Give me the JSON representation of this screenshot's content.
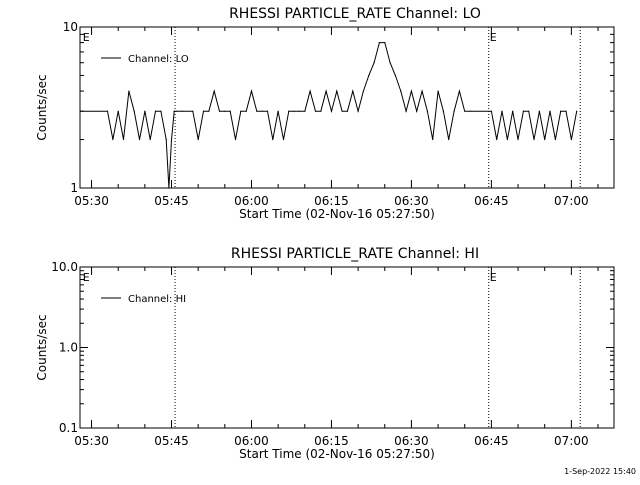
{
  "footer": {
    "timestamp": "1-Sep-2022 15:40"
  },
  "chart_data": [
    {
      "type": "line",
      "title": "RHESSI PARTICLE_RATE Channel: LO",
      "xlabel": "Start Time (02-Nov-16 05:27:50)",
      "ylabel": "Counts/sec",
      "yscale": "log",
      "ylim": [
        1,
        10
      ],
      "yticks": [
        1,
        10
      ],
      "ytick_labels": [
        "1",
        "10"
      ],
      "xlim": [
        "05:27:50",
        "07:08:00"
      ],
      "xticks": [
        "05:30",
        "05:45",
        "06:00",
        "06:15",
        "06:30",
        "06:45",
        "07:00"
      ],
      "legend": {
        "position": "top-left",
        "entries": [
          "Channel: LO"
        ]
      },
      "event_markers": [
        {
          "time": "05:28:10",
          "label": "E",
          "line": false
        },
        {
          "time": "05:45:40",
          "label": "",
          "line": true
        },
        {
          "time": "06:44:30",
          "label": "E",
          "line": true
        },
        {
          "time": "07:01:40",
          "label": "",
          "line": true
        }
      ],
      "series": [
        {
          "name": "Channel: LO",
          "x": [
            "05:28",
            "05:33",
            "05:34",
            "05:35",
            "05:36",
            "05:37",
            "05:38",
            "05:39",
            "05:40",
            "05:41",
            "05:42",
            "05:43",
            "05:44",
            "05:44:30",
            "05:45",
            "05:45:30",
            "05:46",
            "05:47",
            "05:49",
            "05:50",
            "05:51",
            "05:52",
            "05:53",
            "05:54",
            "05:55",
            "05:56",
            "05:57",
            "05:58",
            "05:59",
            "06:00",
            "06:01",
            "06:02",
            "06:03",
            "06:04",
            "06:05",
            "06:06",
            "06:07",
            "06:08",
            "06:09",
            "06:10",
            "06:11",
            "06:12",
            "06:13",
            "06:14",
            "06:15",
            "06:16",
            "06:17",
            "06:18",
            "06:19",
            "06:20",
            "06:21",
            "06:22",
            "06:23",
            "06:24",
            "06:25",
            "06:26",
            "06:27",
            "06:28",
            "06:29",
            "06:30",
            "06:31",
            "06:32",
            "06:33",
            "06:34",
            "06:35",
            "06:36",
            "06:37",
            "06:38",
            "06:39",
            "06:40",
            "06:41",
            "06:45",
            "06:46",
            "06:47",
            "06:48",
            "06:49",
            "06:50",
            "06:51",
            "06:52",
            "06:53",
            "06:54",
            "06:55",
            "06:56",
            "06:57",
            "06:58",
            "06:59",
            "07:00",
            "07:01"
          ],
          "y": [
            3,
            3,
            2,
            3,
            2,
            4,
            3,
            2,
            3,
            2,
            3,
            3,
            2,
            1,
            2,
            3,
            3,
            3,
            3,
            2,
            3,
            3,
            4,
            3,
            3,
            3,
            2,
            3,
            3,
            4,
            3,
            3,
            3,
            2,
            3,
            2,
            3,
            3,
            3,
            3,
            4,
            3,
            3,
            4,
            3,
            4,
            3,
            3,
            4,
            3,
            4,
            5,
            6,
            8,
            8,
            6,
            5,
            4,
            3,
            4,
            3,
            4,
            3,
            2,
            4,
            3,
            2,
            3,
            4,
            3,
            3,
            3,
            2,
            3,
            2,
            3,
            2,
            3,
            3,
            2,
            3,
            2,
            3,
            2,
            3,
            3,
            2,
            3
          ]
        }
      ]
    },
    {
      "type": "line",
      "title": "RHESSI PARTICLE_RATE Channel: HI",
      "xlabel": "Start Time (02-Nov-16 05:27:50)",
      "ylabel": "Counts/sec",
      "yscale": "log",
      "ylim": [
        0.1,
        10
      ],
      "yticks": [
        0.1,
        1,
        10
      ],
      "ytick_labels": [
        "0.1",
        "1.0",
        "10.0"
      ],
      "xlim": [
        "05:27:50",
        "07:08:00"
      ],
      "xticks": [
        "05:30",
        "05:45",
        "06:00",
        "06:15",
        "06:30",
        "06:45",
        "07:00"
      ],
      "legend": {
        "position": "top-left",
        "entries": [
          "Channel: HI"
        ]
      },
      "event_markers": [
        {
          "time": "05:28:10",
          "label": "E",
          "line": false
        },
        {
          "time": "05:45:40",
          "label": "",
          "line": true
        },
        {
          "time": "06:44:30",
          "label": "E",
          "line": true
        },
        {
          "time": "07:01:40",
          "label": "",
          "line": true
        }
      ],
      "series": [
        {
          "name": "Channel: HI",
          "x": [],
          "y": []
        }
      ]
    }
  ]
}
